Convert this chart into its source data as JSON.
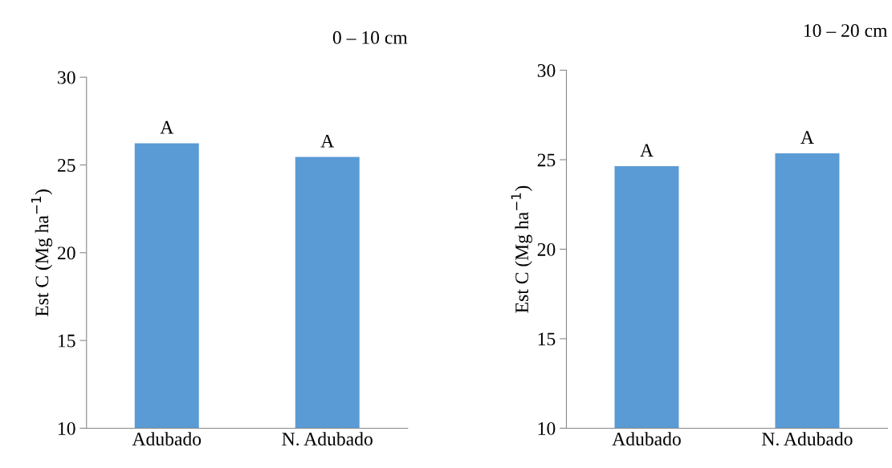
{
  "chart_data": [
    {
      "type": "bar",
      "title": "0 – 10 cm",
      "ylabel": "Est C (Mg ha$^{−1}$)",
      "categories": [
        "Adubado",
        "N. Adubado"
      ],
      "values": [
        26.24,
        25.46
      ],
      "color": "#5b9bd5",
      "ylim": [
        10,
        30
      ],
      "yticks": [
        10,
        15,
        20,
        25,
        30
      ],
      "grid": false,
      "annotations": [
        {
          "text": "A",
          "x": "Adubado",
          "y": 26.24
        },
        {
          "text": "A",
          "x": "N. Adubado",
          "y": 25.46
        }
      ]
    },
    {
      "type": "bar",
      "title": "10 – 20 cm",
      "ylabel": "Est C (Mg ha$^{−1}$)",
      "categories": [
        "Adubado",
        "N. Adubado"
      ],
      "values": [
        24.64,
        25.36
      ],
      "color": "#5b9bd5",
      "ylim": [
        10,
        30
      ],
      "yticks": [
        10,
        15,
        20,
        25,
        30
      ],
      "grid": false,
      "annotations": [
        {
          "text": "A",
          "x": "Adubado",
          "y": 24.64
        },
        {
          "text": "A",
          "x": "N. Adubado",
          "y": 25.36
        }
      ]
    }
  ]
}
